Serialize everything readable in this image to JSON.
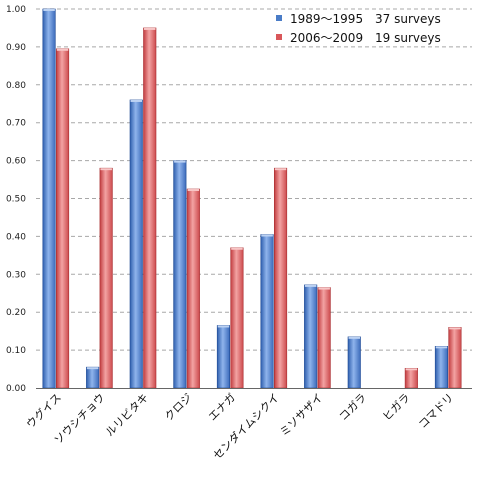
{
  "chart_data": {
    "type": "bar",
    "categories": [
      "ウグイス",
      "ソウシチョウ",
      "ルリビタキ",
      "クロジ",
      "エナガ",
      "センダイムシクイ",
      "ミソサザイ",
      "コガラ",
      "ヒガラ",
      "コマドリ"
    ],
    "series": [
      {
        "name": "1989〜1995",
        "surveys": "37 surveys",
        "color": "#4a7cc7",
        "values": [
          1.0,
          0.055,
          0.76,
          0.6,
          0.165,
          0.405,
          0.272,
          0.135,
          0.0,
          0.11
        ]
      },
      {
        "name": "2006〜2009",
        "surveys": "19 surveys",
        "color": "#d9575a",
        "values": [
          0.895,
          0.58,
          0.95,
          0.525,
          0.37,
          0.58,
          0.265,
          0.0,
          0.052,
          0.16
        ]
      }
    ],
    "yticks": [
      "0.00",
      "0.10",
      "0.20",
      "0.30",
      "0.40",
      "0.50",
      "0.60",
      "0.70",
      "0.80",
      "0.90",
      "1.00"
    ],
    "ylim": [
      0,
      1.0
    ],
    "grid": true,
    "legend_position": "top-right"
  }
}
